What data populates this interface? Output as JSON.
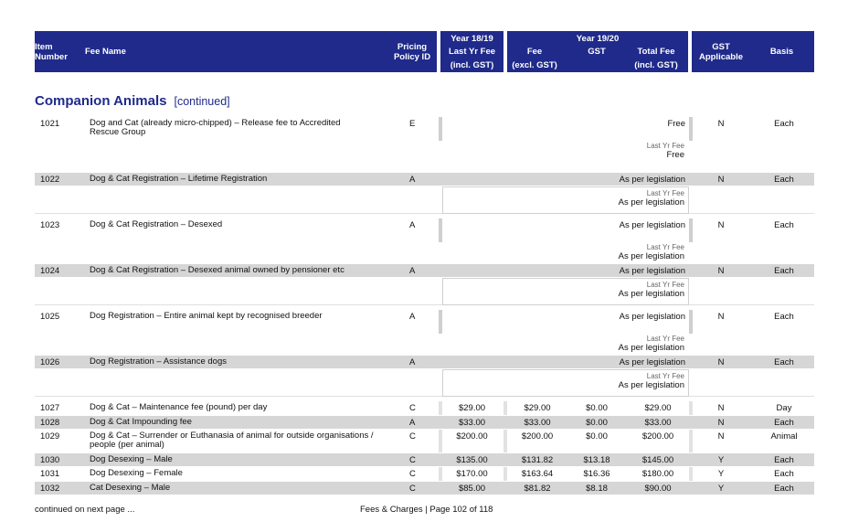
{
  "header": {
    "item_number": [
      "Item",
      "Number"
    ],
    "fee_name": "Fee Name",
    "pricing_policy": [
      "Pricing",
      "Policy ID"
    ],
    "year_prev": "Year 18/19",
    "last_yr_fee": "Last Yr Fee",
    "incl_gst": "(incl. GST)",
    "year_curr": "Year 19/20",
    "fee": "Fee",
    "excl_gst": "(excl. GST)",
    "gst": "GST",
    "total_fee": "Total Fee",
    "total_incl_gst": "(incl. GST)",
    "gst_applicable": [
      "GST",
      "Applicable"
    ],
    "basis": "Basis"
  },
  "section": {
    "title": "Companion Animals",
    "continued": "[continued]"
  },
  "last_yr_label": "Last Yr Fee",
  "rows_special": [
    {
      "id": "1021",
      "name": "Dog and Cat (already micro-chipped) – Release fee to Accredited Rescue Group",
      "policy": "E",
      "value": "Free",
      "last": "Free",
      "gst": "N",
      "basis": "Each"
    },
    {
      "id": "1022",
      "name": "Dog & Cat Registration – Lifetime Registration",
      "policy": "A",
      "value": "As per legislation",
      "last": "As per legislation",
      "gst": "N",
      "basis": "Each"
    },
    {
      "id": "1023",
      "name": "Dog & Cat Registration – Desexed",
      "policy": "A",
      "value": "As per legislation",
      "last": "As per legislation",
      "gst": "N",
      "basis": "Each"
    },
    {
      "id": "1024",
      "name": "Dog & Cat Registration – Desexed animal owned by pensioner etc",
      "policy": "A",
      "value": "As per legislation",
      "last": "As per legislation",
      "gst": "N",
      "basis": "Each"
    },
    {
      "id": "1025",
      "name": "Dog Registration – Entire animal kept by recognised breeder",
      "policy": "A",
      "value": "As per legislation",
      "last": "As per legislation",
      "gst": "N",
      "basis": "Each"
    },
    {
      "id": "1026",
      "name": "Dog Registration – Assistance dogs",
      "policy": "A",
      "value": "As per legislation",
      "last": "As per legislation",
      "gst": "N",
      "basis": "Each"
    }
  ],
  "rows_std": [
    {
      "id": "1027",
      "name": "Dog & Cat – Maintenance fee (pound) per day",
      "policy": "C",
      "last": "$29.00",
      "fee": "$29.00",
      "gstv": "$0.00",
      "total": "$29.00",
      "gst": "N",
      "basis": "Day"
    },
    {
      "id": "1028",
      "name": "Dog & Cat Impounding fee",
      "policy": "A",
      "last": "$33.00",
      "fee": "$33.00",
      "gstv": "$0.00",
      "total": "$33.00",
      "gst": "N",
      "basis": "Each"
    },
    {
      "id": "1029",
      "name": "Dog & Cat – Surrender or Euthanasia of animal for outside organisations / people (per animal)",
      "policy": "C",
      "last": "$200.00",
      "fee": "$200.00",
      "gstv": "$0.00",
      "total": "$200.00",
      "gst": "N",
      "basis": "Animal"
    },
    {
      "id": "1030",
      "name": "Dog Desexing – Male",
      "policy": "C",
      "last": "$135.00",
      "fee": "$131.82",
      "gstv": "$13.18",
      "total": "$145.00",
      "gst": "Y",
      "basis": "Each"
    },
    {
      "id": "1031",
      "name": "Dog Desexing – Female",
      "policy": "C",
      "last": "$170.00",
      "fee": "$163.64",
      "gstv": "$16.36",
      "total": "$180.00",
      "gst": "Y",
      "basis": "Each"
    },
    {
      "id": "1032",
      "name": "Cat Desexing – Male",
      "policy": "C",
      "last": "$85.00",
      "fee": "$81.82",
      "gstv": "$8.18",
      "total": "$90.00",
      "gst": "Y",
      "basis": "Each"
    }
  ],
  "footer": {
    "continued": "continued on next page ...",
    "page": "Fees & Charges | Page 102 of 118"
  }
}
